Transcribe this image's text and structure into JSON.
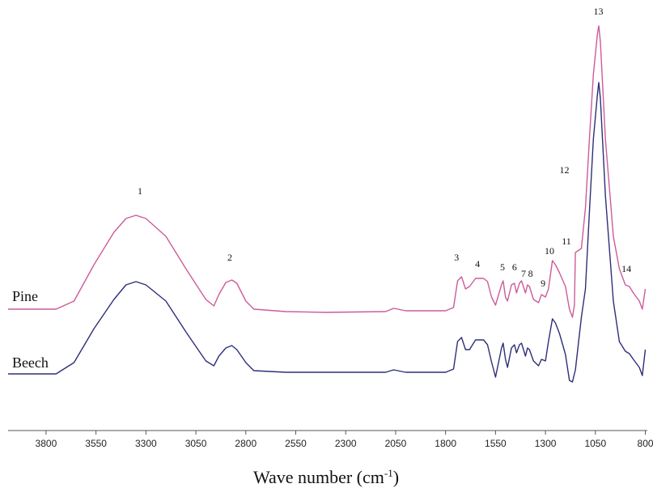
{
  "chart_data": {
    "type": "line",
    "xlabel": "Wave number (cm",
    "xlabel_sup": "-1",
    "xlabel_close": ")",
    "x_reversed": true,
    "xlim": [
      3990,
      790
    ],
    "y_units": "arbitrary (offset spectra)",
    "ylim": [
      0,
      520
    ],
    "ticks": [
      "3800",
      "3550",
      "3300",
      "3050",
      "2800",
      "2550",
      "2300",
      "2050",
      "1800",
      "1550",
      "1300",
      "1050",
      "800"
    ],
    "tick_values": [
      3800,
      3550,
      3300,
      3050,
      2800,
      2550,
      2300,
      2050,
      1800,
      1550,
      1300,
      1050,
      800
    ],
    "grid": false,
    "series": [
      {
        "name": "Pine",
        "color": "#cc5c99",
        "points": [
          [
            3990,
            150
          ],
          [
            3750,
            150
          ],
          [
            3660,
            160
          ],
          [
            3560,
            205
          ],
          [
            3460,
            245
          ],
          [
            3400,
            262
          ],
          [
            3350,
            266
          ],
          [
            3300,
            262
          ],
          [
            3200,
            240
          ],
          [
            3100,
            200
          ],
          [
            3000,
            162
          ],
          [
            2960,
            154
          ],
          [
            2935,
            168
          ],
          [
            2900,
            183
          ],
          [
            2870,
            186
          ],
          [
            2845,
            182
          ],
          [
            2800,
            160
          ],
          [
            2760,
            150
          ],
          [
            2600,
            147
          ],
          [
            2400,
            146
          ],
          [
            2100,
            147
          ],
          [
            2060,
            151
          ],
          [
            2000,
            148
          ],
          [
            1800,
            148
          ],
          [
            1760,
            152
          ],
          [
            1740,
            185
          ],
          [
            1720,
            190
          ],
          [
            1700,
            175
          ],
          [
            1680,
            178
          ],
          [
            1650,
            188
          ],
          [
            1610,
            188
          ],
          [
            1590,
            184
          ],
          [
            1570,
            165
          ],
          [
            1550,
            155
          ],
          [
            1520,
            180
          ],
          [
            1512,
            185
          ],
          [
            1500,
            165
          ],
          [
            1490,
            160
          ],
          [
            1470,
            180
          ],
          [
            1455,
            182
          ],
          [
            1445,
            170
          ],
          [
            1430,
            182
          ],
          [
            1420,
            185
          ],
          [
            1400,
            170
          ],
          [
            1390,
            180
          ],
          [
            1380,
            178
          ],
          [
            1360,
            162
          ],
          [
            1335,
            158
          ],
          [
            1320,
            168
          ],
          [
            1300,
            165
          ],
          [
            1285,
            175
          ],
          [
            1265,
            210
          ],
          [
            1250,
            205
          ],
          [
            1230,
            195
          ],
          [
            1200,
            178
          ],
          [
            1180,
            150
          ],
          [
            1165,
            140
          ],
          [
            1155,
            155
          ],
          [
            1150,
            220
          ],
          [
            1120,
            225
          ],
          [
            1100,
            275
          ],
          [
            1080,
            360
          ],
          [
            1060,
            440
          ],
          [
            1040,
            490
          ],
          [
            1033,
            500
          ],
          [
            1025,
            480
          ],
          [
            1000,
            360
          ],
          [
            960,
            240
          ],
          [
            930,
            200
          ],
          [
            900,
            180
          ],
          [
            880,
            178
          ],
          [
            860,
            170
          ],
          [
            830,
            160
          ],
          [
            815,
            150
          ],
          [
            800,
            175
          ]
        ]
      },
      {
        "name": "Beech",
        "color": "#2e2e7a",
        "points": [
          [
            3990,
            70
          ],
          [
            3750,
            70
          ],
          [
            3660,
            84
          ],
          [
            3560,
            126
          ],
          [
            3460,
            162
          ],
          [
            3400,
            180
          ],
          [
            3350,
            184
          ],
          [
            3300,
            180
          ],
          [
            3200,
            160
          ],
          [
            3100,
            122
          ],
          [
            3000,
            86
          ],
          [
            2960,
            80
          ],
          [
            2935,
            92
          ],
          [
            2900,
            102
          ],
          [
            2870,
            105
          ],
          [
            2845,
            100
          ],
          [
            2800,
            84
          ],
          [
            2760,
            74
          ],
          [
            2600,
            72
          ],
          [
            2400,
            72
          ],
          [
            2100,
            72
          ],
          [
            2060,
            75
          ],
          [
            2000,
            72
          ],
          [
            1800,
            72
          ],
          [
            1760,
            76
          ],
          [
            1740,
            110
          ],
          [
            1720,
            115
          ],
          [
            1700,
            100
          ],
          [
            1680,
            100
          ],
          [
            1650,
            112
          ],
          [
            1610,
            112
          ],
          [
            1590,
            106
          ],
          [
            1570,
            85
          ],
          [
            1550,
            66
          ],
          [
            1520,
            102
          ],
          [
            1512,
            108
          ],
          [
            1500,
            88
          ],
          [
            1490,
            78
          ],
          [
            1470,
            102
          ],
          [
            1455,
            106
          ],
          [
            1445,
            96
          ],
          [
            1430,
            106
          ],
          [
            1420,
            108
          ],
          [
            1400,
            92
          ],
          [
            1390,
            102
          ],
          [
            1380,
            100
          ],
          [
            1360,
            86
          ],
          [
            1335,
            80
          ],
          [
            1320,
            88
          ],
          [
            1300,
            86
          ],
          [
            1285,
            110
          ],
          [
            1265,
            138
          ],
          [
            1250,
            133
          ],
          [
            1230,
            120
          ],
          [
            1200,
            94
          ],
          [
            1180,
            62
          ],
          [
            1165,
            60
          ],
          [
            1150,
            75
          ],
          [
            1120,
            140
          ],
          [
            1100,
            175
          ],
          [
            1080,
            270
          ],
          [
            1060,
            360
          ],
          [
            1040,
            415
          ],
          [
            1033,
            430
          ],
          [
            1025,
            410
          ],
          [
            1000,
            290
          ],
          [
            960,
            160
          ],
          [
            930,
            110
          ],
          [
            900,
            98
          ],
          [
            880,
            95
          ],
          [
            860,
            88
          ],
          [
            830,
            78
          ],
          [
            815,
            68
          ],
          [
            800,
            100
          ]
        ]
      }
    ],
    "peak_labels": [
      {
        "text": "1",
        "x": 3330,
        "y": 292
      },
      {
        "text": "2",
        "x": 2880,
        "y": 210
      },
      {
        "text": "3",
        "x": 1745,
        "y": 210
      },
      {
        "text": "4",
        "x": 1640,
        "y": 202
      },
      {
        "text": "5",
        "x": 1515,
        "y": 198
      },
      {
        "text": "6",
        "x": 1455,
        "y": 198
      },
      {
        "text": "7",
        "x": 1410,
        "y": 190
      },
      {
        "text": "8",
        "x": 1375,
        "y": 190
      },
      {
        "text": "9",
        "x": 1312,
        "y": 178
      },
      {
        "text": "10",
        "x": 1280,
        "y": 218
      },
      {
        "text": "11",
        "x": 1195,
        "y": 230
      },
      {
        "text": "12",
        "x": 1205,
        "y": 318
      },
      {
        "text": "13",
        "x": 1035,
        "y": 514
      },
      {
        "text": "14",
        "x": 895,
        "y": 196
      }
    ],
    "series_labels": [
      {
        "text": "Pine",
        "x": 3970,
        "y": 160
      },
      {
        "text": "Beech",
        "x": 3970,
        "y": 78
      }
    ]
  }
}
